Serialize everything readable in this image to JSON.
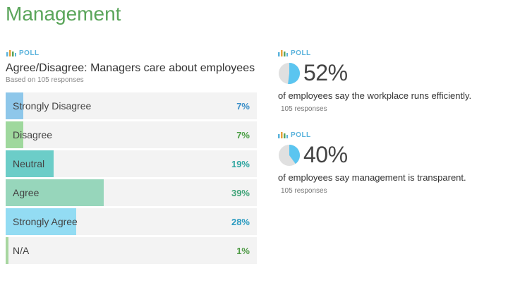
{
  "page": {
    "title": "Management"
  },
  "colors": {
    "title": "#5aa55a",
    "poll_tag": "#5bb3dc",
    "row_bg": "#f3f3f3",
    "pie_fill": "#5bc5f0",
    "pie_bg": "#e0e0e0"
  },
  "left_poll": {
    "tag": "POLL",
    "question": "Agree/Disagree: Managers care about employees",
    "based_on": "Based on 105 responses",
    "options": [
      {
        "label": "Strongly Disagree",
        "pct": "7%",
        "value": 7,
        "fill": "#8ec7ea",
        "text_color": "#3a8fc8"
      },
      {
        "label": "Disagree",
        "pct": "7%",
        "value": 7,
        "fill": "#9fd89d",
        "text_color": "#4a9e44"
      },
      {
        "label": "Neutral",
        "pct": "19%",
        "value": 19,
        "fill": "#6ccdc8",
        "text_color": "#2fa5a0"
      },
      {
        "label": "Agree",
        "pct": "39%",
        "value": 39,
        "fill": "#97d6bb",
        "text_color": "#3fa378"
      },
      {
        "label": "Strongly Agree",
        "pct": "28%",
        "value": 28,
        "fill": "#93dcf3",
        "text_color": "#2b9bc0"
      },
      {
        "label": "N/A",
        "pct": "1%",
        "value": 1,
        "fill": "#a8d6a0",
        "text_color": "#4e9a45"
      }
    ]
  },
  "right_polls": [
    {
      "tag": "POLL",
      "percent": "52%",
      "value": 52,
      "description": "of employees say the workplace runs efficiently.",
      "responses": "105 responses"
    },
    {
      "tag": "POLL",
      "percent": "40%",
      "value": 40,
      "description": "of employees say management is transparent.",
      "responses": "105 responses"
    }
  ]
}
